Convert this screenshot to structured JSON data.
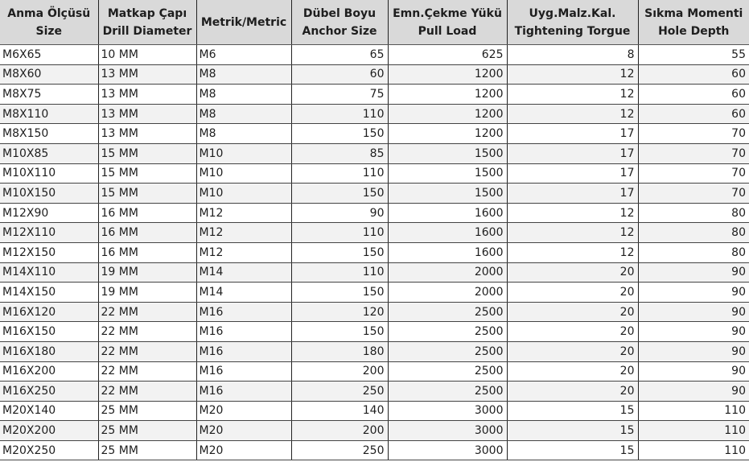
{
  "colors": {
    "header_bg": "#d9d9d9",
    "alt_row_bg": "#f2f2f2"
  },
  "headers": [
    [
      "Anma Ölçüsü",
      "Size"
    ],
    [
      "Matkap Çapı",
      "Drill Diameter"
    ],
    [
      "Metrik/Metric"
    ],
    [
      "Dübel Boyu",
      "Anchor Size"
    ],
    [
      "Emn.Çekme Yükü",
      "Pull Load"
    ],
    [
      "Uyg.Malz.Kal.",
      "Tightening Torgue"
    ],
    [
      "Sıkma Momenti",
      "Hole Depth"
    ]
  ],
  "rows": [
    [
      "M6X65",
      "10 MM",
      "M6",
      "65",
      "625",
      "8",
      "55"
    ],
    [
      "M8X60",
      "13 MM",
      "M8",
      "60",
      "1200",
      "12",
      "60"
    ],
    [
      "M8X75",
      "13 MM",
      "M8",
      "75",
      "1200",
      "12",
      "60"
    ],
    [
      "M8X110",
      "13 MM",
      "M8",
      "110",
      "1200",
      "12",
      "60"
    ],
    [
      "M8X150",
      "13 MM",
      "M8",
      "150",
      "1200",
      "17",
      "70"
    ],
    [
      "M10X85",
      "15 MM",
      "M10",
      "85",
      "1500",
      "17",
      "70"
    ],
    [
      "M10X110",
      "15 MM",
      "M10",
      "110",
      "1500",
      "17",
      "70"
    ],
    [
      "M10X150",
      "15 MM",
      "M10",
      "150",
      "1500",
      "17",
      "70"
    ],
    [
      "M12X90",
      "16 MM",
      "M12",
      "90",
      "1600",
      "12",
      "80"
    ],
    [
      "M12X110",
      "16 MM",
      "M12",
      "110",
      "1600",
      "12",
      "80"
    ],
    [
      "M12X150",
      "16 MM",
      "M12",
      "150",
      "1600",
      "12",
      "80"
    ],
    [
      "M14X110",
      "19 MM",
      "M14",
      "110",
      "2000",
      "20",
      "90"
    ],
    [
      "M14X150",
      "19 MM",
      "M14",
      "150",
      "2000",
      "20",
      "90"
    ],
    [
      "M16X120",
      "22 MM",
      "M16",
      "120",
      "2500",
      "20",
      "90"
    ],
    [
      "M16X150",
      "22 MM",
      "M16",
      "150",
      "2500",
      "20",
      "90"
    ],
    [
      "M16X180",
      "22 MM",
      "M16",
      "180",
      "2500",
      "20",
      "90"
    ],
    [
      "M16X200",
      "22 MM",
      "M16",
      "200",
      "2500",
      "20",
      "90"
    ],
    [
      "M16X250",
      "22 MM",
      "M16",
      "250",
      "2500",
      "20",
      "90"
    ],
    [
      "M20X140",
      "25 MM",
      "M20",
      "140",
      "3000",
      "15",
      "110"
    ],
    [
      "M20X200",
      "25 MM",
      "M20",
      "200",
      "3000",
      "15",
      "110"
    ],
    [
      "M20X250",
      "25 MM",
      "M20",
      "250",
      "3000",
      "15",
      "110"
    ]
  ]
}
